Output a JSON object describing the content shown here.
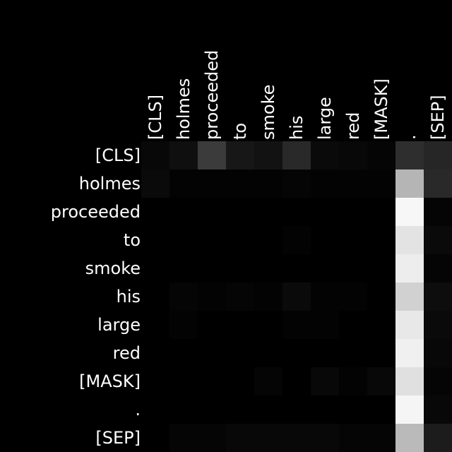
{
  "chart_data": {
    "type": "heatmap",
    "title": "",
    "xlabel": "",
    "ylabel": "",
    "x_categories": [
      "[CLS]",
      "holmes",
      "proceeded",
      "to",
      "smoke",
      "his",
      "large",
      "red",
      "[MASK]",
      ".",
      "[SEP]"
    ],
    "y_categories": [
      "[CLS]",
      "holmes",
      "proceeded",
      "to",
      "smoke",
      "his",
      "large",
      "red",
      "[MASK]",
      ".",
      "[SEP]"
    ],
    "x_axis_position": "top",
    "color_scale": "grayscale",
    "value_range": [
      0,
      1
    ],
    "grid": false,
    "legend": "none",
    "values": [
      [
        0.03,
        0.06,
        0.23,
        0.09,
        0.07,
        0.16,
        0.04,
        0.03,
        0.02,
        0.18,
        0.15
      ],
      [
        0.04,
        0.01,
        0.01,
        0.01,
        0.01,
        0.02,
        0.01,
        0.01,
        0.01,
        0.71,
        0.16
      ],
      [
        0.0,
        0.0,
        0.0,
        0.0,
        0.0,
        0.0,
        0.0,
        0.0,
        0.0,
        0.97,
        0.02
      ],
      [
        0.0,
        0.0,
        0.0,
        0.0,
        0.0,
        0.01,
        0.0,
        0.0,
        0.0,
        0.89,
        0.04
      ],
      [
        0.0,
        0.0,
        0.0,
        0.0,
        0.0,
        0.0,
        0.0,
        0.0,
        0.0,
        0.93,
        0.02
      ],
      [
        0.0,
        0.02,
        0.01,
        0.02,
        0.01,
        0.04,
        0.01,
        0.01,
        0.0,
        0.82,
        0.05
      ],
      [
        0.0,
        0.01,
        0.0,
        0.0,
        0.0,
        0.01,
        0.01,
        0.0,
        0.0,
        0.91,
        0.04
      ],
      [
        0.0,
        0.0,
        0.0,
        0.0,
        0.0,
        0.0,
        0.0,
        0.0,
        0.0,
        0.94,
        0.03
      ],
      [
        0.0,
        0.0,
        0.0,
        0.0,
        0.02,
        0.0,
        0.03,
        0.01,
        0.03,
        0.88,
        0.02
      ],
      [
        0.0,
        0.0,
        0.0,
        0.0,
        0.0,
        0.0,
        0.0,
        0.0,
        0.0,
        0.96,
        0.03
      ],
      [
        0.0,
        0.02,
        0.02,
        0.03,
        0.03,
        0.03,
        0.03,
        0.02,
        0.02,
        0.73,
        0.11
      ]
    ]
  }
}
